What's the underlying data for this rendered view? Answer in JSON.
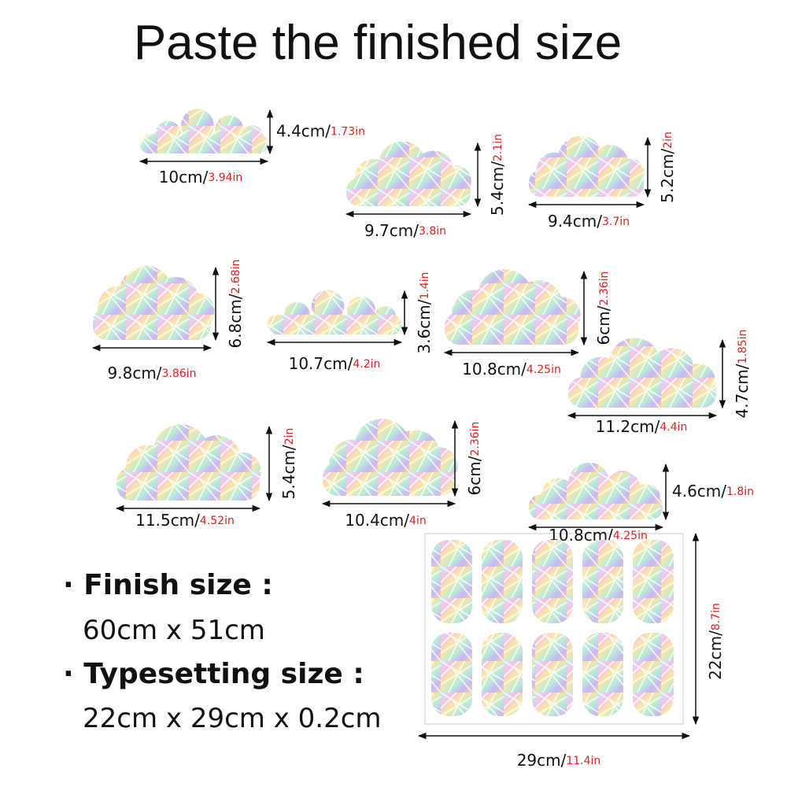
{
  "title": "Paste the finished size",
  "items": [
    {
      "width_cm": "10cm/",
      "width_in": "3.94in",
      "height_cm": "4.4cm/",
      "height_in": "1.73in"
    },
    {
      "width_cm": "9.7cm/",
      "width_in": "3.8in",
      "height_cm": "5.4cm/",
      "height_in": "2.1in"
    },
    {
      "width_cm": "9.4cm/",
      "width_in": "3.7in",
      "height_cm": "5.2cm/",
      "height_in": "2in"
    },
    {
      "width_cm": "9.8cm/",
      "width_in": "3.86in",
      "height_cm": "6.8cm/",
      "height_in": "2.68in"
    },
    {
      "width_cm": "10.7cm/",
      "width_in": "4.2in",
      "height_cm": "3.6cm/",
      "height_in": "1.4in"
    },
    {
      "width_cm": "10.8cm/",
      "width_in": "4.25in",
      "height_cm": "6cm/",
      "height_in": "2.36in"
    },
    {
      "width_cm": "11.2cm/",
      "width_in": "4.4in",
      "height_cm": "4.7cm/",
      "height_in": "1.85in"
    },
    {
      "width_cm": "11.5cm/",
      "width_in": "4.52in",
      "height_cm": "5.4cm/",
      "height_in": "2in"
    },
    {
      "width_cm": "10.4cm/",
      "width_in": "4in",
      "height_cm": "6cm/",
      "height_in": "2.36in"
    },
    {
      "width_cm": "10.8cm/",
      "width_in": "4.25in",
      "height_cm": "4.6cm/",
      "height_in": "1.8in"
    }
  ],
  "sheet": {
    "width_cm": "29cm/",
    "width_in": "11.4in",
    "height_cm": "22cm/",
    "height_in": "8.7in"
  },
  "specs": {
    "finish_label": "· Finish size :",
    "finish_value": "60cm x 51cm",
    "typesetting_label": "· Typesetting size :",
    "typesetting_value": "22cm x 29cm x 0.2cm"
  }
}
